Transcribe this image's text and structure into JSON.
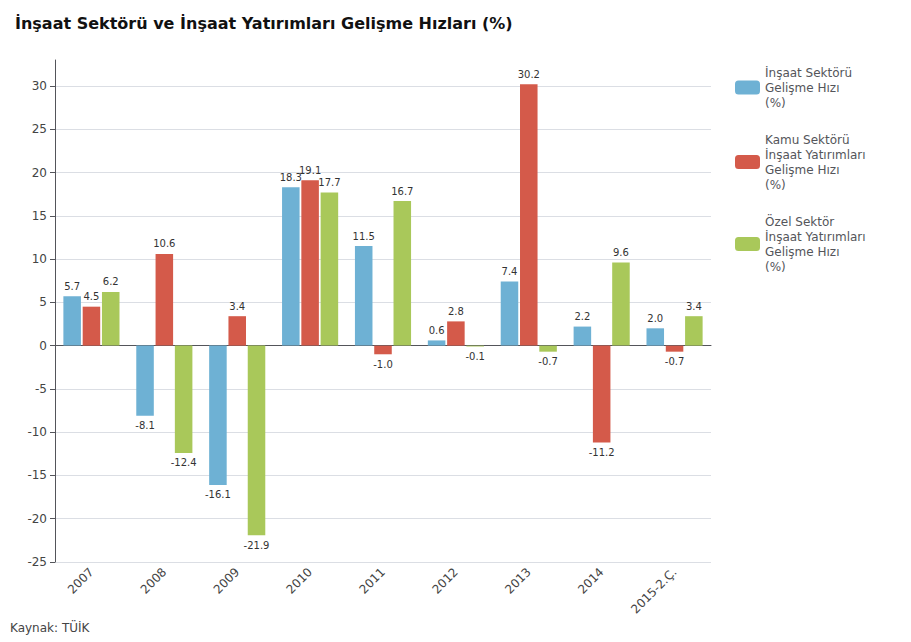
{
  "chart_data": {
    "type": "bar",
    "title": "İnşaat Sektörü ve İnşaat Yatırımları Gelişme Hızları (%)",
    "categories": [
      "2007",
      "2008",
      "2009",
      "2010",
      "2011",
      "2012",
      "2013",
      "2014",
      "2015-2.Ç."
    ],
    "series": [
      {
        "name": "İnşaat Sektörü\nGelişme Hızı\n(%)",
        "color": "#6eb1d4",
        "values": [
          5.7,
          -8.1,
          -16.1,
          18.3,
          11.5,
          0.6,
          7.4,
          2.2,
          2.0
        ],
        "value_labels": [
          "5.7",
          "-8.1",
          "-16.1",
          "18.3",
          "11.5",
          "0.6",
          "7.4",
          "2.2",
          "2.0"
        ]
      },
      {
        "name": "Kamu Sektörü\nİnşaat Yatırımları\nGelişme Hızı\n(%)",
        "color": "#d45a4a",
        "values": [
          4.5,
          10.6,
          3.4,
          19.1,
          -1.0,
          2.8,
          30.2,
          -11.2,
          -0.7
        ],
        "value_labels": [
          "4.5",
          "10.6",
          "3.4",
          "19.1",
          "-1.0",
          "2.8",
          "30.2",
          "-11.2",
          "-0.7"
        ]
      },
      {
        "name": "Özel Sektör\nİnşaat Yatırımları\nGelişme Hızı\n(%)",
        "color": "#a9c85a",
        "values": [
          6.2,
          -12.4,
          -21.9,
          17.7,
          16.7,
          -0.1,
          -0.7,
          9.6,
          3.4
        ],
        "value_labels": [
          "6.2",
          "-12.4",
          "-21.9",
          "17.7",
          "16.7",
          "-0.1",
          "-0.7",
          "9.6",
          "3.4"
        ]
      }
    ],
    "ylim": [
      -25,
      33
    ],
    "yticks": [
      -25,
      -20,
      -15,
      -10,
      -5,
      0,
      5,
      10,
      15,
      20,
      25,
      30
    ],
    "grid": true,
    "legend": "right",
    "data_labels": true,
    "annotations": [
      "Kaynak: TÜİK"
    ]
  }
}
